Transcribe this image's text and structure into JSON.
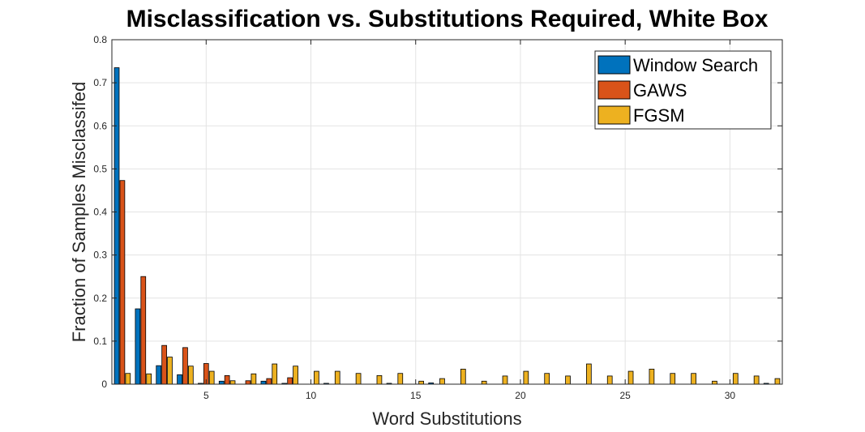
{
  "chart_data": {
    "type": "bar",
    "title": "Misclassification vs. Substitutions Required, White Box",
    "xlabel": "Word Substitutions",
    "ylabel": "Fraction of Samples Misclassifed",
    "xlim": [
      0.5,
      32.5
    ],
    "ylim": [
      0,
      0.8
    ],
    "xticks": [
      5,
      10,
      15,
      20,
      25,
      30
    ],
    "yticks": [
      0,
      0.1,
      0.2,
      0.3,
      0.4,
      0.5,
      0.6,
      0.7,
      0.8
    ],
    "grid": true,
    "legend_position": "top-right",
    "x": [
      1,
      2,
      3,
      4,
      5,
      6,
      7,
      8,
      9,
      10,
      11,
      12,
      13,
      14,
      15,
      16,
      17,
      18,
      19,
      20,
      21,
      22,
      23,
      24,
      25,
      26,
      27,
      28,
      29,
      30,
      31,
      32
    ],
    "series": [
      {
        "name": "Window Search",
        "color": "#0072BD",
        "values": [
          0.735,
          0.175,
          0.043,
          0.022,
          0.002,
          0.007,
          0,
          0.007,
          0.002,
          0,
          0.002,
          0,
          0,
          0.002,
          0,
          0.003,
          0,
          0,
          0,
          0,
          0,
          0,
          0,
          0,
          0,
          0,
          0,
          0,
          0,
          0,
          0,
          0.002
        ]
      },
      {
        "name": "GAWS",
        "color": "#D95319",
        "values": [
          0.473,
          0.25,
          0.09,
          0.085,
          0.048,
          0.02,
          0.008,
          0.013,
          0.015,
          0,
          0,
          0,
          0,
          0,
          0,
          0,
          0,
          0,
          0,
          0,
          0,
          0,
          0,
          0,
          0,
          0,
          0,
          0,
          0,
          0,
          0,
          0
        ]
      },
      {
        "name": "FGSM",
        "color": "#EDB120",
        "values": [
          0.025,
          0.024,
          0.063,
          0.042,
          0.03,
          0.008,
          0.024,
          0.047,
          0.042,
          0.03,
          0.03,
          0.025,
          0.02,
          0.025,
          0.007,
          0.013,
          0.035,
          0.007,
          0.019,
          0.03,
          0.025,
          0.019,
          0.047,
          0.019,
          0.03,
          0.035,
          0.025,
          0.025,
          0.007,
          0.025,
          0.019,
          0.013
        ]
      }
    ]
  }
}
